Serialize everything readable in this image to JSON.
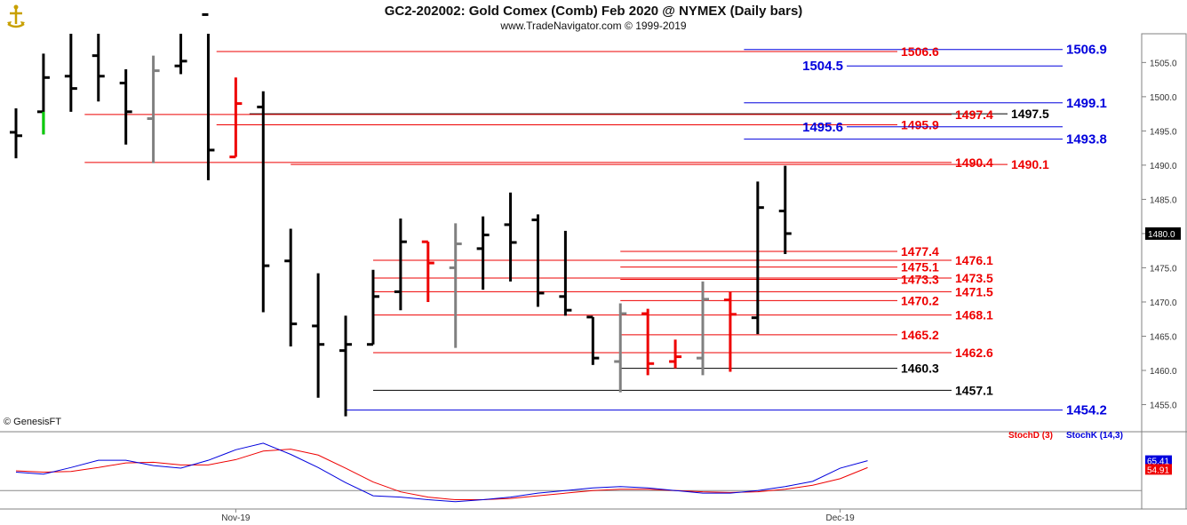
{
  "header": {
    "title": "GC2-202002:  Gold Comex (Comb) Feb 2020 @ NYMEX  (Daily bars)",
    "subtitle": "www.TradeNavigator.com © 1999-2019",
    "credit": "© GenesisFT"
  },
  "chart_data": {
    "type": "ohlc",
    "y_axis": {
      "ylim": [
        1451.3,
        1509.2
      ],
      "ticks": [
        1455.0,
        1460.0,
        1465.0,
        1470.0,
        1475.0,
        1480.0,
        1485.0,
        1490.0,
        1495.0,
        1500.0,
        1505.0
      ],
      "tick_labels": [
        "1455.0",
        "1460.0",
        "1465.0",
        "1470.0",
        "1475.0",
        "1480.0",
        "1485.0",
        "1490.0",
        "1495.0",
        "1500.0",
        "1505.0"
      ],
      "last_price_label": "1480.0",
      "last_price": 1480.0
    },
    "x_axis": {
      "tick_labels": [
        {
          "label": "Nov-19",
          "bar": 8
        },
        {
          "label": "Dec-19",
          "bar": 30
        }
      ]
    },
    "colors": {
      "up": "#000000",
      "down": "#000000",
      "red": "#ee0000",
      "gray": "#808080",
      "green": "#00cc00",
      "blue": "#0000dd"
    },
    "bars": [
      {
        "open": 1494.8,
        "high": 1498.3,
        "low": 1491.0,
        "close": 1494.3,
        "color": "black"
      },
      {
        "open": 1497.8,
        "high": 1506.3,
        "low": 1494.5,
        "close": 1502.8,
        "color": "black",
        "wick_color": "green"
      },
      {
        "open": 1503.0,
        "high": 1512.0,
        "low": 1497.8,
        "close": 1501.2,
        "color": "black"
      },
      {
        "open": 1506.0,
        "high": 1512.0,
        "low": 1499.3,
        "close": 1503.0,
        "color": "black"
      },
      {
        "open": 1502.0,
        "high": 1504.0,
        "low": 1493.0,
        "close": 1497.8,
        "color": "black"
      },
      {
        "open": 1496.8,
        "high": 1506.0,
        "low": 1490.3,
        "close": 1503.8,
        "color": "gray"
      },
      {
        "open": 1504.5,
        "high": 1512.0,
        "low": 1503.3,
        "close": 1505.2,
        "color": "black"
      },
      {
        "open": 1512.0,
        "high": 1512.0,
        "low": 1487.8,
        "close": 1492.2,
        "color": "black"
      },
      {
        "open": 1491.2,
        "high": 1502.8,
        "low": 1491.2,
        "close": 1499.0,
        "color": "red"
      },
      {
        "open": 1498.5,
        "high": 1500.8,
        "low": 1468.5,
        "close": 1475.3,
        "color": "black"
      },
      {
        "open": 1476.0,
        "high": 1480.7,
        "low": 1463.5,
        "close": 1466.8,
        "color": "black"
      },
      {
        "open": 1466.5,
        "high": 1474.2,
        "low": 1456.0,
        "close": 1463.8,
        "color": "black"
      },
      {
        "open": 1462.9,
        "high": 1468.0,
        "low": 1453.3,
        "close": 1463.8,
        "color": "black"
      },
      {
        "open": 1463.8,
        "high": 1474.7,
        "low": 1463.8,
        "close": 1470.8,
        "color": "black"
      },
      {
        "open": 1471.5,
        "high": 1482.2,
        "low": 1468.8,
        "close": 1478.8,
        "color": "black"
      },
      {
        "open": 1478.8,
        "high": 1478.8,
        "low": 1470.0,
        "close": 1475.7,
        "color": "red"
      },
      {
        "open": 1475.0,
        "high": 1481.5,
        "low": 1463.3,
        "close": 1478.5,
        "color": "gray"
      },
      {
        "open": 1477.8,
        "high": 1482.5,
        "low": 1471.8,
        "close": 1479.8,
        "color": "black"
      },
      {
        "open": 1481.3,
        "high": 1486.0,
        "low": 1473.0,
        "close": 1478.7,
        "color": "black"
      },
      {
        "open": 1482.0,
        "high": 1482.8,
        "low": 1469.3,
        "close": 1471.3,
        "color": "black"
      },
      {
        "open": 1470.8,
        "high": 1480.4,
        "low": 1468.0,
        "close": 1468.8,
        "color": "black"
      },
      {
        "open": 1467.8,
        "high": 1467.8,
        "low": 1460.8,
        "close": 1461.8,
        "color": "black"
      },
      {
        "open": 1461.3,
        "high": 1469.8,
        "low": 1456.8,
        "close": 1468.3,
        "color": "gray"
      },
      {
        "open": 1468.3,
        "high": 1469.0,
        "low": 1459.3,
        "close": 1461.0,
        "color": "red"
      },
      {
        "open": 1461.3,
        "high": 1464.5,
        "low": 1460.3,
        "close": 1462.0,
        "color": "red"
      },
      {
        "open": 1461.8,
        "high": 1473.0,
        "low": 1459.3,
        "close": 1470.4,
        "color": "gray"
      },
      {
        "open": 1470.3,
        "high": 1471.5,
        "low": 1459.8,
        "close": 1468.2,
        "color": "red"
      },
      {
        "open": 1467.7,
        "high": 1487.6,
        "low": 1465.3,
        "close": 1483.8,
        "color": "black"
      },
      {
        "open": 1483.3,
        "high": 1489.9,
        "low": 1477.0,
        "close": 1480.0,
        "color": "black"
      }
    ],
    "levels": [
      {
        "price": 1506.9,
        "label": "1506.9",
        "color": "blue",
        "x_start_bar": 26.5,
        "label_pos": "right"
      },
      {
        "price": 1506.6,
        "label": "1506.6",
        "color": "red",
        "x_start_bar": 7.3,
        "label_pos": "mid"
      },
      {
        "price": 1504.5,
        "label": "1504.5",
        "color": "blue",
        "x_start_bar": 26.5,
        "label_pos": "left"
      },
      {
        "price": 1499.1,
        "label": "1499.1",
        "color": "blue",
        "x_start_bar": 26.5,
        "label_pos": "right"
      },
      {
        "price": 1497.5,
        "label": "1497.5",
        "color": "black",
        "x_start_bar": 8.5,
        "label_pos": "far"
      },
      {
        "price": 1497.4,
        "label": "1497.4",
        "color": "red",
        "x_start_bar": 2.5,
        "label_pos": "far2"
      },
      {
        "price": 1495.9,
        "label": "1495.9",
        "color": "red",
        "x_start_bar": 7.3,
        "label_pos": "mid"
      },
      {
        "price": 1495.6,
        "label": "1495.6",
        "color": "blue",
        "x_start_bar": 26.5,
        "label_pos": "left"
      },
      {
        "price": 1493.8,
        "label": "1493.8",
        "color": "blue",
        "x_start_bar": 26.5,
        "label_pos": "right"
      },
      {
        "price": 1490.4,
        "label": "1490.4",
        "color": "red",
        "x_start_bar": 2.5,
        "label_pos": "far2"
      },
      {
        "price": 1490.1,
        "label": "1490.1",
        "color": "red",
        "x_start_bar": 10.0,
        "label_pos": "far3"
      },
      {
        "price": 1477.4,
        "label": "1477.4",
        "color": "red",
        "x_start_bar": 22.0,
        "label_pos": "mid"
      },
      {
        "price": 1476.1,
        "label": "1476.1",
        "color": "red",
        "x_start_bar": 13.0,
        "label_pos": "far2"
      },
      {
        "price": 1475.1,
        "label": "1475.1",
        "color": "red",
        "x_start_bar": 22.0,
        "label_pos": "mid"
      },
      {
        "price": 1473.5,
        "label": "1473.5",
        "color": "red",
        "x_start_bar": 13.0,
        "label_pos": "far2"
      },
      {
        "price": 1473.3,
        "label": "1473.3",
        "color": "red",
        "x_start_bar": 22.0,
        "label_pos": "mid"
      },
      {
        "price": 1471.5,
        "label": "1471.5",
        "color": "red",
        "x_start_bar": 13.0,
        "label_pos": "far2"
      },
      {
        "price": 1470.2,
        "label": "1470.2",
        "color": "red",
        "x_start_bar": 22.0,
        "label_pos": "mid"
      },
      {
        "price": 1468.1,
        "label": "1468.1",
        "color": "red",
        "x_start_bar": 13.0,
        "label_pos": "far2"
      },
      {
        "price": 1465.2,
        "label": "1465.2",
        "color": "red",
        "x_start_bar": 22.0,
        "label_pos": "mid"
      },
      {
        "price": 1462.6,
        "label": "1462.6",
        "color": "red",
        "x_start_bar": 13.0,
        "label_pos": "far2"
      },
      {
        "price": 1460.3,
        "label": "1460.3",
        "color": "black",
        "x_start_bar": 22.0,
        "label_pos": "mid"
      },
      {
        "price": 1457.1,
        "label": "1457.1",
        "color": "black",
        "x_start_bar": 13.0,
        "label_pos": "far2"
      },
      {
        "price": 1454.2,
        "label": "1454.2",
        "color": "blue",
        "x_start_bar": 12.0,
        "label_pos": "right"
      }
    ],
    "stochastic": {
      "legend": [
        {
          "name": "StochD (3)",
          "color": "red"
        },
        {
          "name": "StochK (14,3)",
          "color": "blue"
        }
      ],
      "ylim": [
        0,
        100
      ],
      "stochK": [
        48,
        45,
        55,
        66,
        66,
        58,
        54,
        66,
        82,
        92,
        75,
        55,
        32,
        12,
        10,
        6,
        3,
        6,
        10,
        16,
        20,
        24,
        26,
        24,
        20,
        16,
        16,
        20,
        26,
        34,
        54,
        65.41
      ],
      "stochD": [
        50,
        48,
        49,
        55,
        62,
        63,
        59,
        59,
        67,
        80,
        83,
        74,
        54,
        33,
        18,
        10,
        6,
        6,
        8,
        12,
        16,
        20,
        22,
        22,
        20,
        18,
        17,
        18,
        22,
        28,
        38,
        54.91
      ],
      "stochK_label": "65.41",
      "stochD_label": "54.91"
    }
  }
}
